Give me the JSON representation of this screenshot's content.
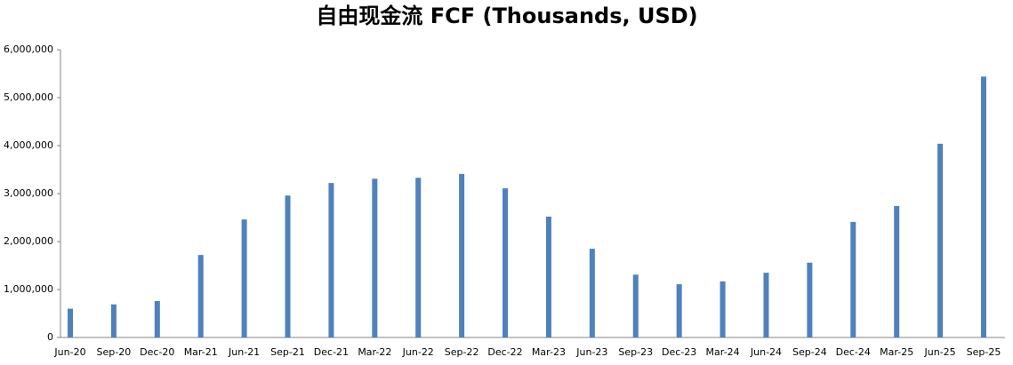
{
  "chart_data": {
    "type": "bar",
    "title": "自由现金流 FCF (Thousands, USD)",
    "categories": [
      "Jun-20",
      "Sep-20",
      "Dec-20",
      "Mar-21",
      "Jun-21",
      "Sep-21",
      "Dec-21",
      "Mar-22",
      "Jun-22",
      "Sep-22",
      "Dec-22",
      "Mar-23",
      "Jun-23",
      "Sep-23",
      "Dec-23",
      "Mar-24",
      "Jun-24",
      "Sep-24",
      "Dec-24",
      "Mar-25",
      "Jun-25",
      "Sep-25"
    ],
    "values": [
      600000,
      690000,
      760000,
      1720000,
      2460000,
      2960000,
      3220000,
      3310000,
      3330000,
      3410000,
      3110000,
      2520000,
      1850000,
      1310000,
      1110000,
      1170000,
      1350000,
      1560000,
      2410000,
      2740000,
      4040000,
      5440000
    ],
    "color": "#4f81bd",
    "ylim": [
      0,
      6000000
    ],
    "yticks": [
      0,
      {
        "value": 1000000,
        "label": "1,000,000"
      },
      {
        "value": 2000000,
        "label": "2,000,000"
      },
      {
        "value": 3000000,
        "label": "3,000,000"
      },
      {
        "value": 4000000,
        "label": "4,000,000"
      },
      {
        "value": 5000000,
        "label": "5,000,000"
      },
      {
        "value": 6000000,
        "label": "6,000,000"
      }
    ],
    "grid": false
  }
}
